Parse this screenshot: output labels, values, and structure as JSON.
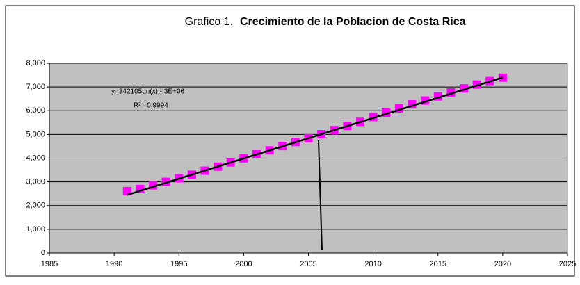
{
  "chart_data": {
    "type": "scatter",
    "title_prefix": "Grafico 1.",
    "title": "Crecimiento de la Poblacion de Costa Rica",
    "annotations": [
      "y=342105Ln(x) - 3E+06",
      "R² =0.9994"
    ],
    "x": [
      1991,
      1992,
      1993,
      1994,
      1995,
      1996,
      1997,
      1998,
      1999,
      2000,
      2001,
      2002,
      2003,
      2004,
      2005,
      2006,
      2007,
      2008,
      2009,
      2010,
      2011,
      2012,
      2013,
      2014,
      2015,
      2016,
      2017,
      2018,
      2019,
      2020
    ],
    "values": [
      2610,
      2700,
      2850,
      3000,
      3150,
      3300,
      3470,
      3640,
      3820,
      3990,
      4160,
      4330,
      4510,
      4680,
      4840,
      5010,
      5180,
      5360,
      5530,
      5730,
      5920,
      6100,
      6270,
      6430,
      6600,
      6770,
      6940,
      7100,
      7250,
      7390
    ],
    "color": "#ff00ff",
    "trendline": {
      "x": [
        1991,
        2020
      ],
      "values": [
        2450,
        7400
      ],
      "color": "#000000"
    },
    "xlim": [
      1985,
      2025
    ],
    "xticks": [
      1985,
      1990,
      1995,
      2000,
      2005,
      2010,
      2015,
      2020,
      2025
    ],
    "ylim": [
      0,
      8000
    ],
    "yticks": [
      0,
      {
        "value": 1000,
        "label": "1,000"
      },
      {
        "value": 2000,
        "label": "2,000"
      },
      {
        "value": 3000,
        "label": "3,000"
      },
      {
        "value": 4000,
        "label": "4,000"
      },
      {
        "value": 5000,
        "label": "5,000"
      },
      {
        "value": 6000,
        "label": "6,000"
      },
      {
        "value": 7000,
        "label": "7,000"
      },
      {
        "value": 8000,
        "label": "8,000"
      }
    ],
    "grid": true
  }
}
